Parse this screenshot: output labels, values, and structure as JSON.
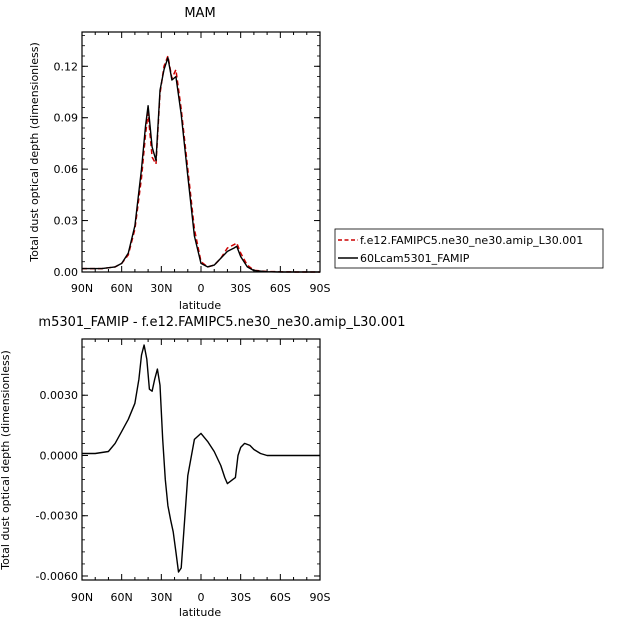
{
  "chart_data": [
    {
      "type": "line",
      "title": "MAM",
      "xlabel": "latitude",
      "ylabel": "Total dust optical depth (dimensionless)",
      "x_ticks": [
        "90N",
        "60N",
        "30N",
        "0",
        "30S",
        "60S",
        "90S"
      ],
      "y_ticks": [
        "0.00",
        "0.03",
        "0.06",
        "0.09",
        "0.12"
      ],
      "xlim": [
        90,
        -90
      ],
      "ylim": [
        0,
        0.14
      ],
      "legend": [
        "f.e12.FAMIPC5.ne30_ne30.amip_L30.001",
        "60Lcam5301_FAMIP"
      ],
      "legend_position": "outside-right",
      "series": [
        {
          "name": "f.e12.FAMIPC5.ne30_ne30.amip_L30.001",
          "color": "#cc0000",
          "dash": "dashed",
          "x": [
            90,
            75,
            65,
            60,
            55,
            50,
            45,
            42,
            40,
            37,
            34,
            31,
            28,
            25,
            22,
            19,
            15,
            10,
            5,
            0,
            -5,
            -10,
            -15,
            -20,
            -25,
            -27,
            -30,
            -35,
            -40,
            -50,
            -60,
            -75,
            -90
          ],
          "y": [
            0.002,
            0.002,
            0.003,
            0.005,
            0.01,
            0.025,
            0.055,
            0.08,
            0.093,
            0.067,
            0.063,
            0.104,
            0.12,
            0.126,
            0.113,
            0.118,
            0.095,
            0.06,
            0.025,
            0.006,
            0.003,
            0.004,
            0.008,
            0.014,
            0.016,
            0.017,
            0.011,
            0.004,
            0.001,
            0.0003,
            0.0001,
            0.0,
            0.0
          ]
        },
        {
          "name": "60Lcam5301_FAMIP",
          "color": "#000000",
          "dash": "solid",
          "x": [
            90,
            75,
            65,
            60,
            55,
            50,
            45,
            42,
            40,
            37,
            34,
            31,
            28,
            25,
            22,
            19,
            15,
            10,
            5,
            0,
            -5,
            -10,
            -15,
            -20,
            -25,
            -27,
            -30,
            -35,
            -40,
            -50,
            -60,
            -75,
            -90
          ],
          "y": [
            0.002,
            0.002,
            0.003,
            0.005,
            0.011,
            0.027,
            0.06,
            0.085,
            0.097,
            0.073,
            0.065,
            0.106,
            0.118,
            0.125,
            0.112,
            0.114,
            0.092,
            0.056,
            0.021,
            0.005,
            0.003,
            0.004,
            0.008,
            0.012,
            0.014,
            0.015,
            0.009,
            0.003,
            0.0008,
            0.0002,
            0.0,
            0.0,
            0.0
          ]
        }
      ]
    },
    {
      "type": "line",
      "title": "m5301_FAMIP - f.e12.FAMIPC5.ne30_ne30.amip_L30.001",
      "xlabel": "latitude",
      "ylabel": "Total dust optical depth (dimensionless)",
      "x_ticks": [
        "90N",
        "60N",
        "30N",
        "0",
        "30S",
        "60S",
        "90S"
      ],
      "y_ticks": [
        "-0.0060",
        "-0.0030",
        "0.0000",
        "0.0030"
      ],
      "xlim": [
        90,
        -90
      ],
      "ylim": [
        -0.0062,
        0.0058
      ],
      "series": [
        {
          "color": "#000000",
          "dash": "solid",
          "x": [
            90,
            80,
            70,
            65,
            60,
            55,
            50,
            47,
            45,
            43,
            41,
            39,
            37,
            35,
            33,
            31,
            29,
            27,
            25,
            23,
            21,
            19,
            17,
            15,
            13,
            10,
            5,
            0,
            -5,
            -10,
            -15,
            -18,
            -20,
            -22,
            -24,
            -26,
            -28,
            -30,
            -33,
            -37,
            -40,
            -45,
            -50,
            -60,
            -75,
            -90
          ],
          "y": [
            0.0001,
            0.0001,
            0.0002,
            0.0006,
            0.0012,
            0.0018,
            0.0026,
            0.0038,
            0.005,
            0.0055,
            0.0048,
            0.0033,
            0.0032,
            0.0038,
            0.0043,
            0.0035,
            0.0008,
            -0.0012,
            -0.0025,
            -0.0032,
            -0.0038,
            -0.0048,
            -0.0058,
            -0.0056,
            -0.0038,
            -0.001,
            0.0008,
            0.0011,
            0.0007,
            0.0002,
            -0.0005,
            -0.0011,
            -0.0014,
            -0.0013,
            -0.0012,
            -0.0011,
            0.0,
            0.0004,
            0.0006,
            0.0005,
            0.0003,
            0.0001,
            0.0,
            0.0,
            0.0,
            0.0
          ]
        }
      ]
    }
  ]
}
